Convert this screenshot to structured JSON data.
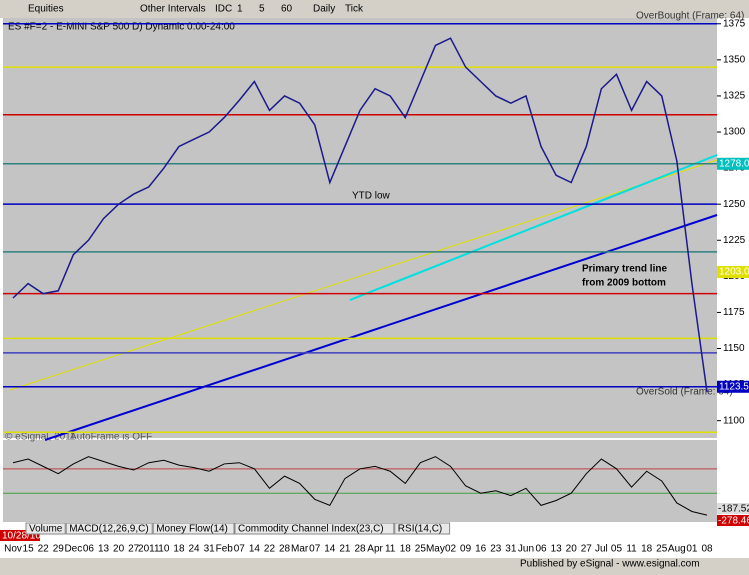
{
  "toolbar": {
    "symbol_menu": "Equities",
    "interval_menu": "Other Intervals",
    "buttons": [
      "IDC",
      "1",
      "5",
      "60",
      "Daily",
      "Tick"
    ]
  },
  "chart_data": {
    "type": "line",
    "title": "ES #F=2 - E-MINI S&P 500 D) Dynamic 0:00-24:00",
    "start_date": "10/28/10",
    "categories": [
      "Nov",
      "15",
      "22",
      "29",
      "Dec",
      "06",
      "13",
      "20",
      "27",
      "2011",
      "10",
      "18",
      "24",
      "31",
      "Feb",
      "07",
      "14",
      "22",
      "28",
      "Mar",
      "07",
      "14",
      "21",
      "28",
      "Apr",
      "11",
      "18",
      "25",
      "May",
      "02",
      "09",
      "16",
      "23",
      "31",
      "Jun",
      "06",
      "13",
      "20",
      "27",
      "Jul",
      "05",
      "11",
      "18",
      "25",
      "Aug",
      "01",
      "08"
    ],
    "series": [
      {
        "color": "#1a1a8c",
        "values": [
          1185,
          1195,
          1188,
          1190,
          1215,
          1225,
          1240,
          1250,
          1257,
          1262,
          1275,
          1290,
          1295,
          1300,
          1310,
          1322,
          1335,
          1315,
          1325,
          1320,
          1305,
          1265,
          1290,
          1315,
          1330,
          1325,
          1310,
          1335,
          1360,
          1365,
          1345,
          1335,
          1325,
          1320,
          1325,
          1290,
          1270,
          1265,
          1290,
          1330,
          1340,
          1315,
          1335,
          1325,
          1280,
          1195,
          1120
        ]
      }
    ],
    "ylim": [
      1088,
      1379
    ],
    "yticks": [
      1100,
      1125,
      1150,
      1175,
      1200,
      1225,
      1250,
      1275,
      1300,
      1325,
      1350,
      1375
    ],
    "levels": [
      {
        "value": 1375,
        "color": "#0000c0"
      },
      {
        "value": 1345,
        "color": "#e0e000"
      },
      {
        "value": 1312,
        "color": "#d00000"
      },
      {
        "value": 1278,
        "color": "#308080"
      },
      {
        "value": 1250,
        "color": "#0000c0"
      },
      {
        "value": 1217,
        "color": "#308080"
      },
      {
        "value": 1188,
        "color": "#d00000"
      },
      {
        "value": 1157,
        "color": "#e0e000"
      },
      {
        "value": 1147,
        "color": "#4040c0"
      },
      {
        "value": 1123.5,
        "color": "#0000c0"
      },
      {
        "value": 1092,
        "color": "#e0e000"
      }
    ],
    "level_labels": [
      {
        "value": 1278,
        "label": "1278.0",
        "color": "#00c0c0"
      },
      {
        "value": 1203,
        "label": "1203.0",
        "color": "#e0e000"
      },
      {
        "value": 1123.5,
        "label": "1123.50",
        "color": "#0000c0"
      }
    ],
    "annotations": {
      "ytd_low": "YTD low",
      "trend": "Primary trend line",
      "trend2": "from 2009 bottom",
      "overbought": "OverBought (Frame: 64)",
      "oversold": "OverSold (Frame: 64)",
      "autoframe": "AutoFrame is OFF",
      "copyright": "© eSignal, 2011"
    },
    "oscillator": {
      "values": [
        150,
        180,
        120,
        60,
        140,
        200,
        160,
        120,
        90,
        150,
        170,
        130,
        110,
        80,
        140,
        150,
        100,
        -60,
        40,
        -20,
        -150,
        -200,
        20,
        100,
        120,
        80,
        -20,
        150,
        200,
        120,
        -40,
        -100,
        -80,
        -120,
        -60,
        -200,
        -160,
        -100,
        60,
        180,
        100,
        -50,
        80,
        0,
        -180,
        -250,
        -280
      ],
      "ylim": [
        -320,
        320
      ],
      "levels": [
        {
          "value": 100,
          "color": "#c04040"
        },
        {
          "value": -100,
          "color": "#40a040"
        }
      ],
      "labels": [
        "-187.52",
        "-278.46"
      ]
    },
    "tabs": [
      "Volume",
      "MACD(12,26,9,C)",
      "Money Flow(14)",
      "Commodity Channel Index(23,C)",
      "RSI(14,C)"
    ]
  },
  "footer": "Published by eSignal - www.esignal.com"
}
